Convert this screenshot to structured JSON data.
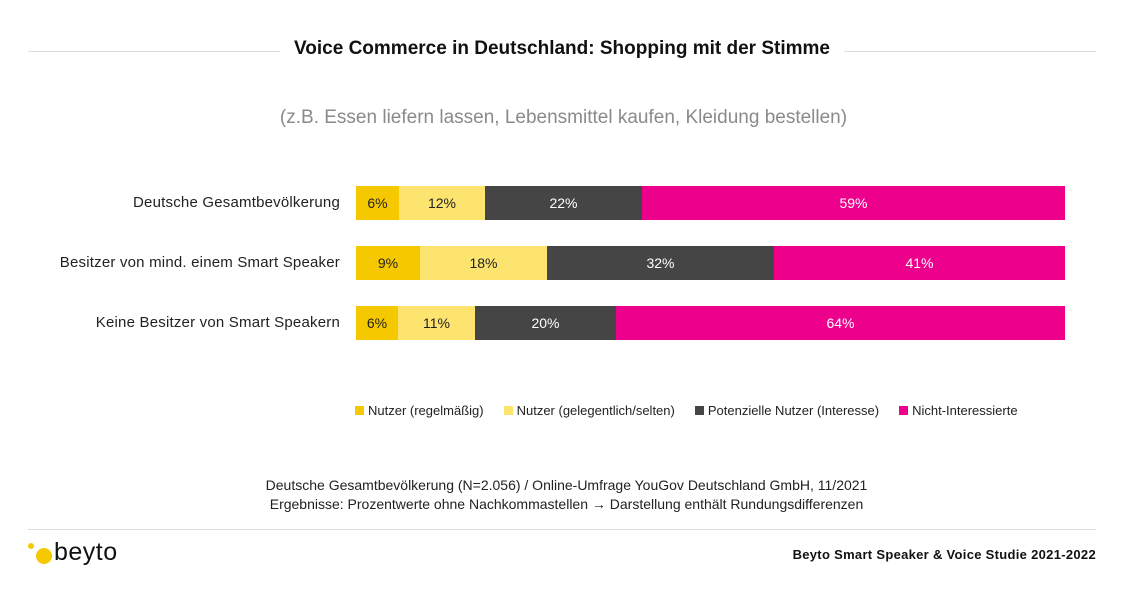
{
  "header": {
    "title": "Voice Commerce in Deutschland: Shopping mit der Stimme",
    "subtitle": "(z.B. Essen liefern lassen, Lebensmittel kaufen, Kleidung bestellen)"
  },
  "chart_data": {
    "type": "bar",
    "orientation": "horizontal",
    "stacked": true,
    "title": "Voice Commerce in Deutschland: Shopping mit der Stimme",
    "subtitle": "(z.B. Essen liefern lassen, Lebensmittel kaufen, Kleidung bestellen)",
    "categories": [
      "Deutsche Gesamtbevölkerung",
      "Besitzer von mind. einem Smart Speaker",
      "Keine Besitzer von Smart Speakern"
    ],
    "series": [
      {
        "name": "Nutzer (regelmäßig)",
        "color": "#f5c800",
        "text_color": "#222222",
        "values": [
          6,
          9,
          6
        ]
      },
      {
        "name": "Nutzer (gelegentlich/selten)",
        "color": "#fce46e",
        "text_color": "#222222",
        "values": [
          12,
          18,
          11
        ]
      },
      {
        "name": "Potenzielle Nutzer (Interesse)",
        "color": "#454545",
        "text_color": "#ffffff",
        "values": [
          22,
          32,
          20
        ]
      },
      {
        "name": "Nicht-Interessierte",
        "color": "#ec008c",
        "text_color": "#ffffff",
        "values": [
          59,
          41,
          64
        ]
      }
    ],
    "legend_position": "bottom",
    "grid": false,
    "unit": "%"
  },
  "footnote": {
    "line1": "Deutsche Gesamtbevölkerung (N=2.056) / Online-Umfrage YouGov Deutschland GmbH, 11/2021",
    "line2": "Ergebnisse: Prozentwerte ohne Nachkommastellen → Darstellung enthält Rundungsdifferenzen"
  },
  "footer": {
    "logo_text": "beyto",
    "study_label": "Beyto Smart Speaker & Voice Studie 2021-2022"
  }
}
